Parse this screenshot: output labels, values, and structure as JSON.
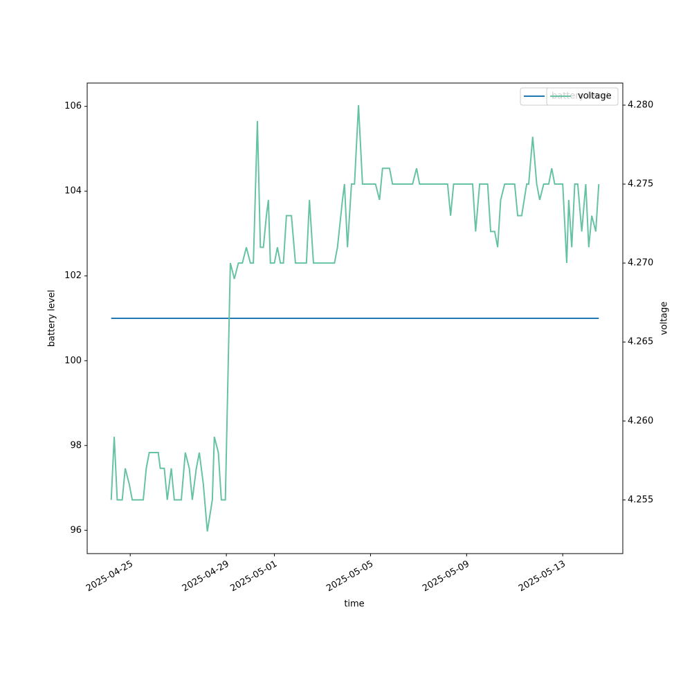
{
  "chart_data": {
    "type": "line",
    "xlabel": "time",
    "ylabel": "battery level",
    "y2label": "voltage",
    "x": [
      "2025-04-24T05:00",
      "2025-04-24T08:00",
      "2025-04-24T11:00",
      "2025-04-24T16:00",
      "2025-04-24T19:00",
      "2025-04-24T23:00",
      "2025-04-25T02:00",
      "2025-04-25T13:00",
      "2025-04-25T16:00",
      "2025-04-25T19:00",
      "2025-04-26T04:00",
      "2025-04-26T06:00",
      "2025-04-26T10:00",
      "2025-04-26T13:00",
      "2025-04-26T17:00",
      "2025-04-26T20:00",
      "2025-04-27T03:00",
      "2025-04-27T07:00",
      "2025-04-27T11:00",
      "2025-04-27T14:00",
      "2025-04-27T18:00",
      "2025-04-27T21:00",
      "2025-04-28T01:00",
      "2025-04-28T05:00",
      "2025-04-28T10:00",
      "2025-04-28T12:00",
      "2025-04-28T16:00",
      "2025-04-28T19:00",
      "2025-04-28T23:00",
      "2025-04-29T04:00",
      "2025-04-29T08:00",
      "2025-04-29T12:00",
      "2025-04-29T16:00",
      "2025-04-29T20:00",
      "2025-04-30T00:00",
      "2025-04-30T03:00",
      "2025-04-30T07:00",
      "2025-04-30T10:00",
      "2025-04-30T13:00",
      "2025-04-30T16:00",
      "2025-04-30T18:00",
      "2025-04-30T20:00",
      "2025-05-01T00:00",
      "2025-05-01T03:00",
      "2025-05-01T06:00",
      "2025-05-01T09:00",
      "2025-05-01T12:00",
      "2025-05-01T17:00",
      "2025-05-01T21:00",
      "2025-05-02T08:00",
      "2025-05-02T11:00",
      "2025-05-02T15:00",
      "2025-05-03T12:00",
      "2025-05-03T15:00",
      "2025-05-03T20:00",
      "2025-05-03T22:00",
      "2025-05-04T01:00",
      "2025-05-04T05:00",
      "2025-05-04T08:00",
      "2025-05-04T12:00",
      "2025-05-04T16:00",
      "2025-05-05T05:00",
      "2025-05-05T09:00",
      "2025-05-05T12:00",
      "2025-05-05T19:00",
      "2025-05-05T22:00",
      "2025-05-06T18:00",
      "2025-05-06T22:00",
      "2025-05-07T01:00",
      "2025-05-08T05:00",
      "2025-05-08T08:00",
      "2025-05-08T11:00",
      "2025-05-09T06:00",
      "2025-05-09T09:00",
      "2025-05-09T13:00",
      "2025-05-09T21:00",
      "2025-05-10T00:00",
      "2025-05-10T04:00",
      "2025-05-10T07:00",
      "2025-05-10T10:00",
      "2025-05-10T14:00",
      "2025-05-11T00:00",
      "2025-05-11T03:00",
      "2025-05-11T07:00",
      "2025-05-11T12:00",
      "2025-05-11T14:00",
      "2025-05-11T18:00",
      "2025-05-11T22:00",
      "2025-05-12T01:00",
      "2025-05-12T05:00",
      "2025-05-12T10:00",
      "2025-05-12T13:00",
      "2025-05-12T16:00",
      "2025-05-13T00:00",
      "2025-05-13T04:00",
      "2025-05-13T06:00",
      "2025-05-13T09:00",
      "2025-05-13T12:00",
      "2025-05-13T15:00",
      "2025-05-13T19:00",
      "2025-05-13T23:00",
      "2025-05-14T02:00",
      "2025-05-14T05:00",
      "2025-05-14T09:00",
      "2025-05-14T12:00"
    ],
    "series": [
      {
        "name": "battery level",
        "color": "#1f77b4",
        "axis": "y",
        "values": [
          101,
          101,
          101,
          101,
          101,
          101,
          101,
          101,
          101,
          101,
          101,
          101,
          101,
          101,
          101,
          101,
          101,
          101,
          101,
          101,
          101,
          101,
          101,
          101,
          101,
          101,
          101,
          101,
          101,
          101,
          101,
          101,
          101,
          101,
          101,
          101,
          101,
          101,
          101,
          101,
          101,
          101,
          101,
          101,
          101,
          101,
          101,
          101,
          101,
          101,
          101,
          101,
          101,
          101,
          101,
          101,
          101,
          101,
          101,
          101,
          101,
          101,
          101,
          101,
          101,
          101,
          101,
          101,
          101,
          101,
          101,
          101,
          101,
          101,
          101,
          101,
          101,
          101,
          101,
          101,
          101,
          101,
          101,
          101,
          101,
          101,
          101,
          101,
          101,
          101,
          101,
          101,
          101,
          101,
          101,
          101,
          101,
          101,
          101,
          101,
          101,
          101,
          101,
          101,
          101
        ]
      },
      {
        "name": "voltage",
        "color": "#66c2a5",
        "axis": "y2",
        "values": [
          4.255,
          4.259,
          4.255,
          4.255,
          4.257,
          4.256,
          4.255,
          4.255,
          4.257,
          4.258,
          4.258,
          4.257,
          4.257,
          4.255,
          4.257,
          4.255,
          4.255,
          4.258,
          4.257,
          4.255,
          4.257,
          4.258,
          4.256,
          4.253,
          4.255,
          4.259,
          4.258,
          4.255,
          4.255,
          4.27,
          4.269,
          4.27,
          4.27,
          4.271,
          4.27,
          4.27,
          4.279,
          4.271,
          4.271,
          4.273,
          4.274,
          4.27,
          4.27,
          4.271,
          4.27,
          4.27,
          4.273,
          4.273,
          4.27,
          4.27,
          4.274,
          4.27,
          4.27,
          4.271,
          4.274,
          4.275,
          4.271,
          4.275,
          4.275,
          4.28,
          4.275,
          4.275,
          4.274,
          4.276,
          4.276,
          4.275,
          4.275,
          4.276,
          4.275,
          4.275,
          4.273,
          4.275,
          4.275,
          4.272,
          4.275,
          4.275,
          4.272,
          4.272,
          4.271,
          4.274,
          4.275,
          4.275,
          4.273,
          4.273,
          4.275,
          4.275,
          4.278,
          4.275,
          4.274,
          4.275,
          4.275,
          4.276,
          4.275,
          4.275,
          4.27,
          4.274,
          4.271,
          4.275,
          4.275,
          4.272,
          4.275,
          4.271,
          4.273,
          4.272,
          4.275
        ]
      }
    ],
    "xlim": [
      "2025-04-23T05:00",
      "2025-05-15T12:00"
    ],
    "xticks": [
      "2025-04-25",
      "2025-04-29",
      "2025-05-01",
      "2025-05-05",
      "2025-05-09",
      "2025-05-13"
    ],
    "ylim": [
      95.45,
      106.55
    ],
    "yticks": [
      96,
      98,
      100,
      102,
      104,
      106
    ],
    "y2lim": [
      4.2516,
      4.2814
    ],
    "y2ticks": [
      4.255,
      {
        "value": 4.26,
        "label": "4.260"
      },
      4.265,
      {
        "value": 4.27,
        "label": "4.270"
      },
      4.275,
      {
        "value": 4.28,
        "label": "4.280"
      }
    ],
    "legend": "upper right"
  }
}
